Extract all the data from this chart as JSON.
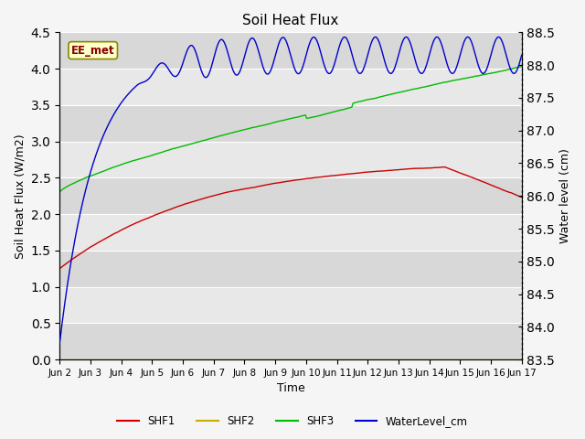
{
  "title": "Soil Heat Flux",
  "ylabel_left": "Soil Heat Flux (W/m2)",
  "ylabel_right": "Water level (cm)",
  "xlabel": "Time",
  "annotation_text": "EE_met",
  "fig_facecolor": "#f5f5f5",
  "plot_bg_color": "#e8e8e8",
  "ylim_left": [
    0.0,
    4.5
  ],
  "ylim_right": [
    83.5,
    88.5
  ],
  "yticks_left": [
    0.0,
    0.5,
    1.0,
    1.5,
    2.0,
    2.5,
    3.0,
    3.5,
    4.0,
    4.5
  ],
  "yticks_right": [
    83.5,
    84.0,
    84.5,
    85.0,
    85.5,
    86.0,
    86.5,
    87.0,
    87.5,
    88.0,
    88.5
  ],
  "colors": {
    "SHF1": "#cc0000",
    "SHF2": "#ccaa00",
    "SHF3": "#00bb00",
    "WaterLevel": "#0000cc"
  },
  "x_tick_labels": [
    "Jun 2",
    "Jun 3",
    "Jun 4",
    "Jun 5",
    "Jun 6",
    "Jun 7",
    "Jun 8",
    "Jun 9",
    "Jun 10",
    "Jun 11",
    "Jun 12",
    "Jun 13",
    "Jun 14",
    "Jun 15",
    "Jun 16",
    "Jun 17"
  ],
  "legend_labels": [
    "SHF1",
    "SHF2",
    "SHF3",
    "WaterLevel_cm"
  ]
}
